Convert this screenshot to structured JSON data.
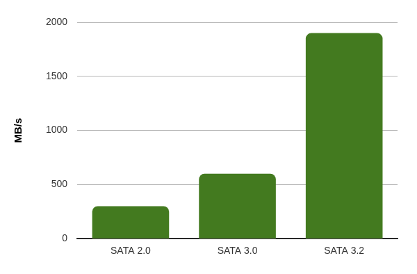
{
  "chart_data": {
    "type": "bar",
    "y_label": "MB/s",
    "categories": [
      "SATA 2.0",
      "SATA 3.0",
      "SATA 3.2"
    ],
    "values": [
      300,
      600,
      1900
    ],
    "color": "#437a1f",
    "ylim": [
      0,
      2000
    ],
    "yticks": [
      0,
      500,
      1000,
      1500,
      2000
    ],
    "grid": true
  }
}
